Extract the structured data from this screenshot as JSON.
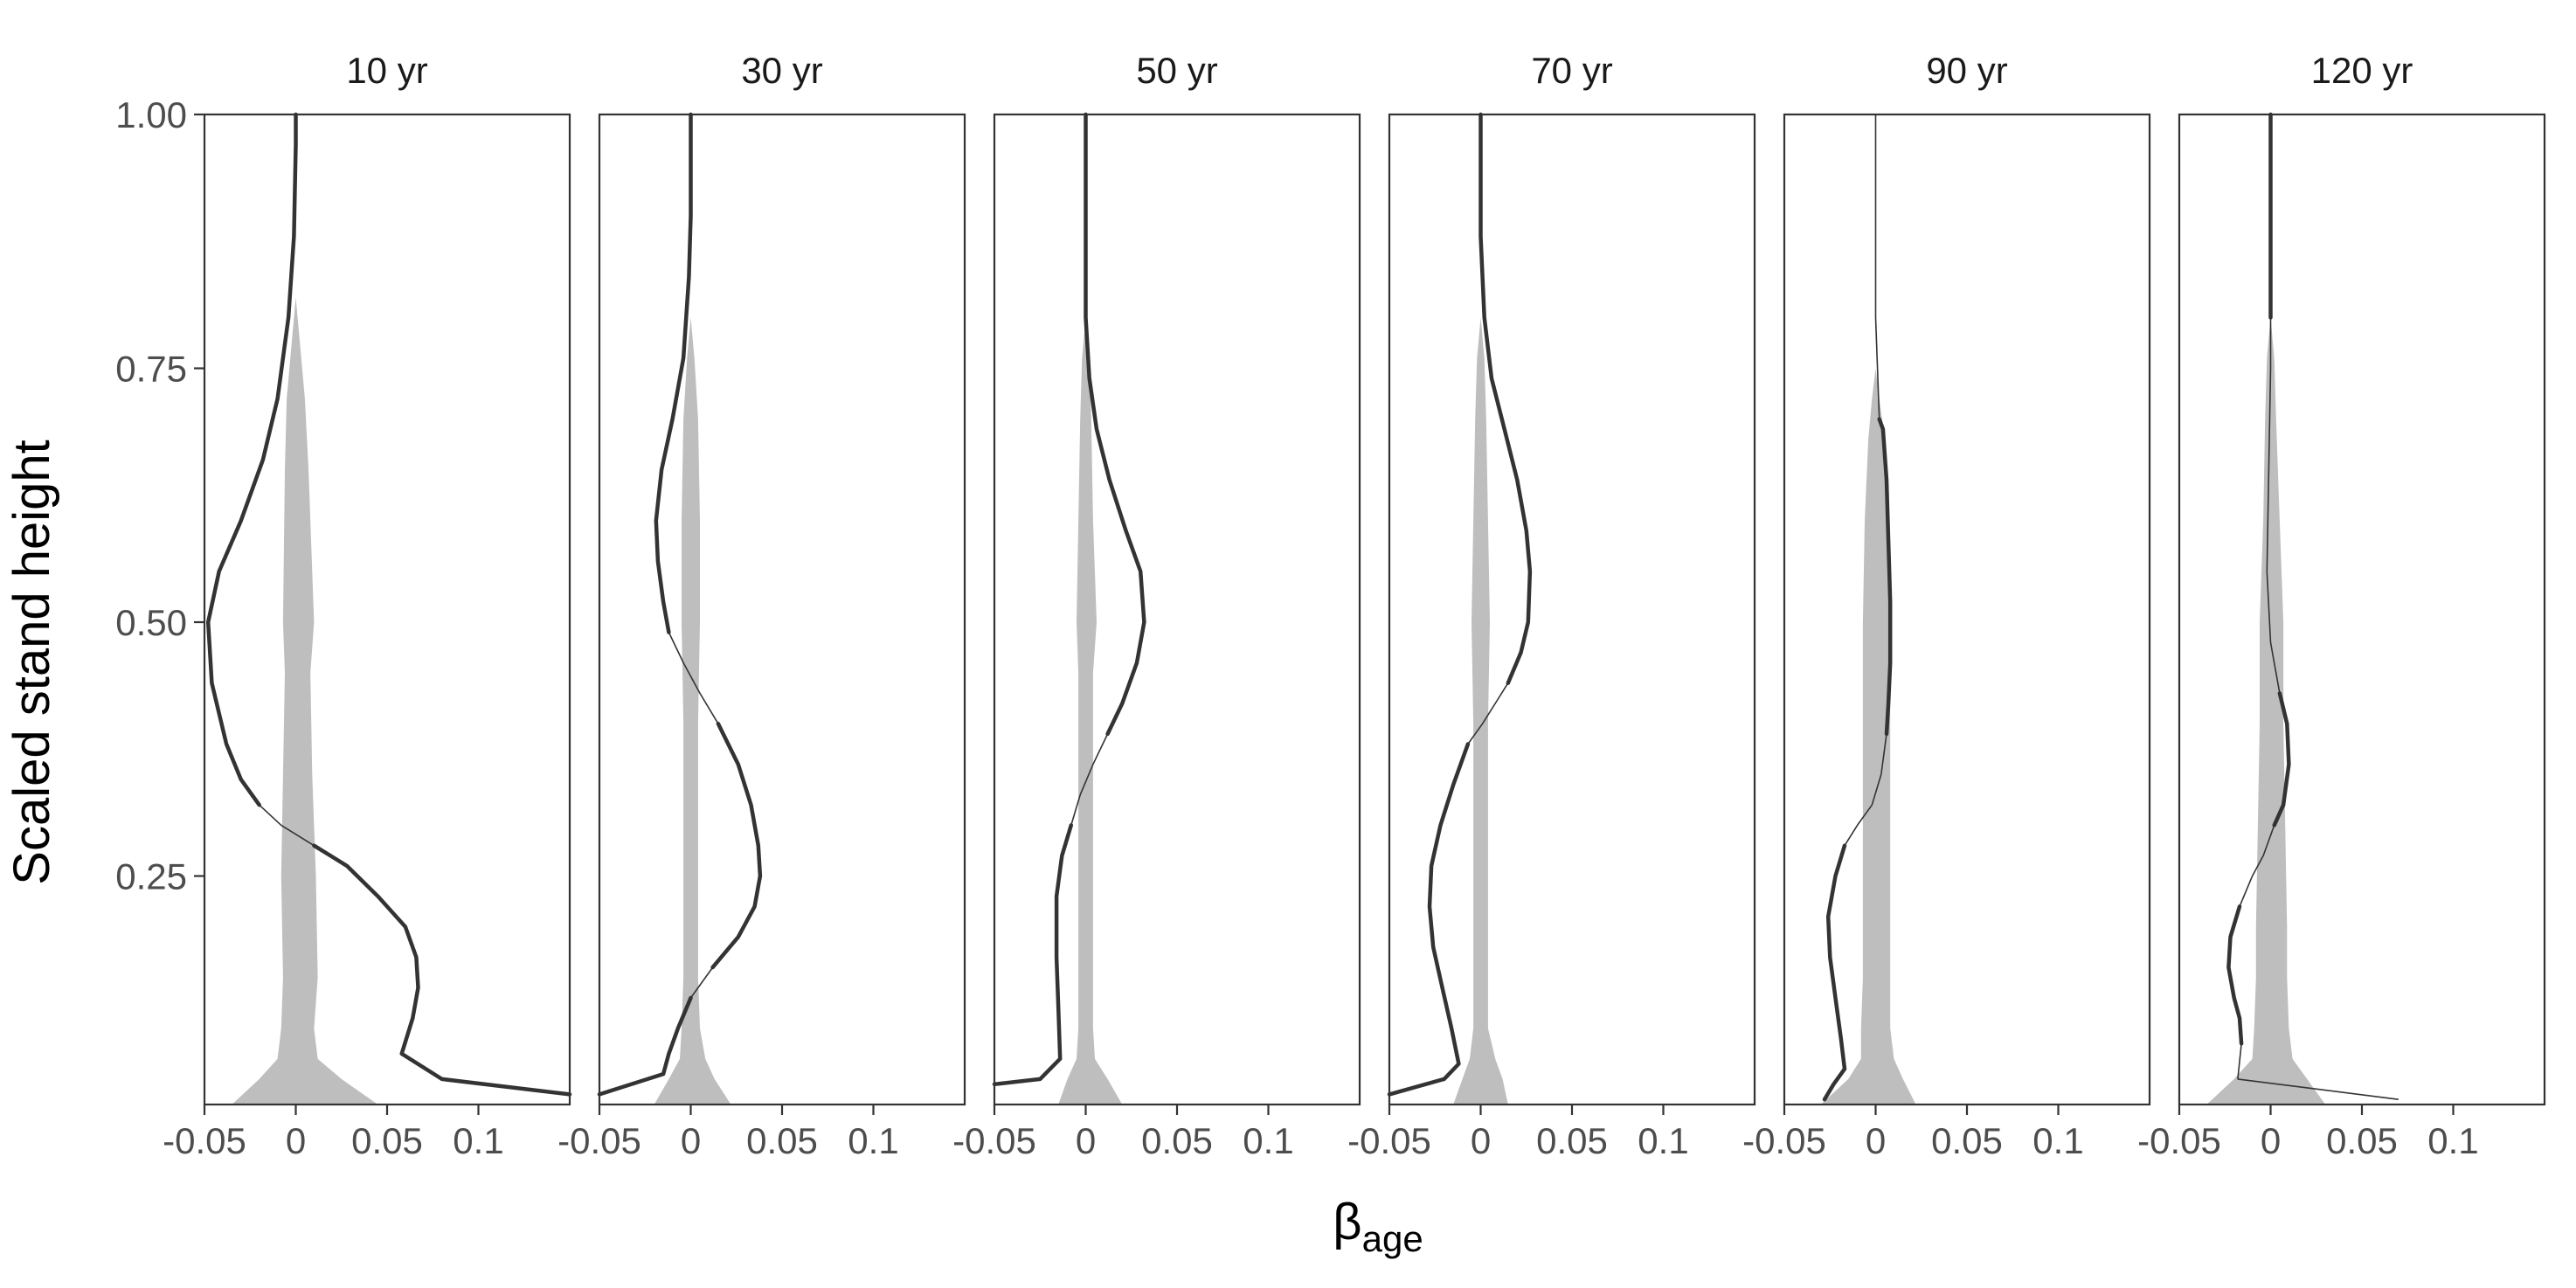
{
  "chart_data": {
    "type": "line",
    "ylabel": "Scaled stand height",
    "xlabel_main": "β",
    "xlabel_sub": "age",
    "xlim": [
      -0.05,
      0.15
    ],
    "ylim": [
      0.025,
      1.0
    ],
    "xticks": [
      -0.05,
      0,
      0.05,
      0.1
    ],
    "xtick_labels": [
      "-0.05",
      "0",
      "0.05",
      "0.1"
    ],
    "yticks": [
      0.25,
      0.5,
      0.75,
      1.0
    ],
    "ytick_labels": [
      "0.25",
      "0.50",
      "0.75",
      "1.00"
    ],
    "colors": {
      "line": "#333333",
      "band": "#bebebe",
      "frame": "#333333"
    },
    "panels": [
      {
        "title": "10 yr",
        "line": [
          [
            0.0,
            1.0
          ],
          [
            0.0,
            0.97
          ],
          [
            -0.001,
            0.88
          ],
          [
            -0.004,
            0.8
          ],
          [
            -0.01,
            0.72
          ],
          [
            -0.018,
            0.66
          ],
          [
            -0.03,
            0.6
          ],
          [
            -0.042,
            0.55
          ],
          [
            -0.048,
            0.5
          ],
          [
            -0.046,
            0.44
          ],
          [
            -0.038,
            0.38
          ],
          [
            -0.03,
            0.345
          ],
          [
            -0.02,
            0.32
          ],
          [
            -0.008,
            0.3
          ],
          [
            0.01,
            0.28
          ],
          [
            0.028,
            0.26
          ],
          [
            0.045,
            0.23
          ],
          [
            0.06,
            0.2
          ],
          [
            0.066,
            0.17
          ],
          [
            0.067,
            0.14
          ],
          [
            0.064,
            0.11
          ],
          [
            0.058,
            0.075
          ],
          [
            0.08,
            0.05
          ],
          [
            0.15,
            0.035
          ]
        ],
        "thin": [
          [
            0.33,
            0.29
          ]
        ],
        "band": [
          [
            1.0,
            0.0,
            0.0
          ],
          [
            0.82,
            0.0,
            0.0
          ],
          [
            0.78,
            -0.002,
            0.002
          ],
          [
            0.72,
            -0.005,
            0.005
          ],
          [
            0.65,
            -0.006,
            0.007
          ],
          [
            0.5,
            -0.007,
            0.01
          ],
          [
            0.45,
            -0.006,
            0.008
          ],
          [
            0.35,
            -0.007,
            0.009
          ],
          [
            0.25,
            -0.008,
            0.011
          ],
          [
            0.15,
            -0.007,
            0.012
          ],
          [
            0.1,
            -0.008,
            0.01
          ],
          [
            0.07,
            -0.01,
            0.012
          ],
          [
            0.05,
            -0.02,
            0.025
          ],
          [
            0.025,
            -0.035,
            0.045
          ]
        ]
      },
      {
        "title": "30 yr",
        "line": [
          [
            0.0,
            1.0
          ],
          [
            0.0,
            0.9
          ],
          [
            -0.001,
            0.84
          ],
          [
            -0.004,
            0.76
          ],
          [
            -0.01,
            0.7
          ],
          [
            -0.016,
            0.65
          ],
          [
            -0.019,
            0.6
          ],
          [
            -0.018,
            0.56
          ],
          [
            -0.015,
            0.52
          ],
          [
            -0.012,
            0.49
          ],
          [
            -0.004,
            0.46
          ],
          [
            0.005,
            0.43
          ],
          [
            0.015,
            0.4
          ],
          [
            0.026,
            0.36
          ],
          [
            0.033,
            0.32
          ],
          [
            0.037,
            0.28
          ],
          [
            0.038,
            0.25
          ],
          [
            0.035,
            0.22
          ],
          [
            0.026,
            0.19
          ],
          [
            0.012,
            0.16
          ],
          [
            0.0,
            0.13
          ],
          [
            -0.007,
            0.1
          ],
          [
            -0.012,
            0.075
          ],
          [
            -0.015,
            0.055
          ],
          [
            -0.05,
            0.035
          ]
        ],
        "thin": [
          [
            0.49,
            0.41
          ],
          [
            0.16,
            0.14
          ]
        ],
        "band": [
          [
            1.0,
            0.0,
            0.0
          ],
          [
            0.8,
            0.0,
            0.0
          ],
          [
            0.76,
            -0.002,
            0.002
          ],
          [
            0.7,
            -0.004,
            0.004
          ],
          [
            0.6,
            -0.005,
            0.005
          ],
          [
            0.5,
            -0.005,
            0.005
          ],
          [
            0.4,
            -0.004,
            0.004
          ],
          [
            0.3,
            -0.004,
            0.004
          ],
          [
            0.2,
            -0.004,
            0.004
          ],
          [
            0.15,
            -0.004,
            0.004
          ],
          [
            0.1,
            -0.005,
            0.005
          ],
          [
            0.07,
            -0.006,
            0.008
          ],
          [
            0.05,
            -0.012,
            0.013
          ],
          [
            0.025,
            -0.02,
            0.022
          ]
        ]
      },
      {
        "title": "50 yr",
        "line": [
          [
            0.0,
            1.0
          ],
          [
            0.0,
            0.9
          ],
          [
            0.0,
            0.8
          ],
          [
            0.002,
            0.74
          ],
          [
            0.006,
            0.69
          ],
          [
            0.013,
            0.64
          ],
          [
            0.022,
            0.59
          ],
          [
            0.03,
            0.55
          ],
          [
            0.032,
            0.5
          ],
          [
            0.028,
            0.46
          ],
          [
            0.02,
            0.42
          ],
          [
            0.012,
            0.39
          ],
          [
            0.004,
            0.36
          ],
          [
            -0.003,
            0.33
          ],
          [
            -0.008,
            0.3
          ],
          [
            -0.013,
            0.27
          ],
          [
            -0.016,
            0.23
          ],
          [
            -0.016,
            0.17
          ],
          [
            -0.015,
            0.12
          ],
          [
            -0.014,
            0.07
          ],
          [
            -0.025,
            0.05
          ],
          [
            -0.05,
            0.045
          ]
        ],
        "thin": [
          [
            0.39,
            0.31
          ]
        ],
        "band": [
          [
            1.0,
            0.0,
            0.0
          ],
          [
            0.8,
            0.0,
            0.0
          ],
          [
            0.76,
            -0.002,
            0.002
          ],
          [
            0.7,
            -0.003,
            0.003
          ],
          [
            0.6,
            -0.004,
            0.004
          ],
          [
            0.5,
            -0.005,
            0.006
          ],
          [
            0.45,
            -0.004,
            0.004
          ],
          [
            0.3,
            -0.004,
            0.004
          ],
          [
            0.2,
            -0.004,
            0.004
          ],
          [
            0.15,
            -0.004,
            0.004
          ],
          [
            0.1,
            -0.004,
            0.004
          ],
          [
            0.07,
            -0.005,
            0.005
          ],
          [
            0.05,
            -0.01,
            0.012
          ],
          [
            0.025,
            -0.015,
            0.02
          ]
        ]
      },
      {
        "title": "70 yr",
        "line": [
          [
            0.0,
            1.0
          ],
          [
            0.0,
            0.97
          ],
          [
            0.0,
            0.88
          ],
          [
            0.002,
            0.8
          ],
          [
            0.006,
            0.74
          ],
          [
            0.013,
            0.69
          ],
          [
            0.02,
            0.64
          ],
          [
            0.025,
            0.59
          ],
          [
            0.027,
            0.55
          ],
          [
            0.026,
            0.5
          ],
          [
            0.022,
            0.47
          ],
          [
            0.015,
            0.44
          ],
          [
            0.008,
            0.42
          ],
          [
            0.001,
            0.4
          ],
          [
            -0.007,
            0.38
          ],
          [
            -0.015,
            0.34
          ],
          [
            -0.022,
            0.3
          ],
          [
            -0.027,
            0.26
          ],
          [
            -0.028,
            0.22
          ],
          [
            -0.026,
            0.18
          ],
          [
            -0.021,
            0.14
          ],
          [
            -0.016,
            0.1
          ],
          [
            -0.012,
            0.065
          ],
          [
            -0.02,
            0.05
          ],
          [
            -0.05,
            0.035
          ]
        ],
        "thin": [
          [
            0.44,
            0.38
          ]
        ],
        "band": [
          [
            1.0,
            0.0,
            0.0
          ],
          [
            0.8,
            0.0,
            0.0
          ],
          [
            0.76,
            -0.002,
            0.002
          ],
          [
            0.7,
            -0.003,
            0.003
          ],
          [
            0.6,
            -0.004,
            0.004
          ],
          [
            0.5,
            -0.005,
            0.005
          ],
          [
            0.4,
            -0.004,
            0.004
          ],
          [
            0.3,
            -0.004,
            0.004
          ],
          [
            0.2,
            -0.004,
            0.004
          ],
          [
            0.15,
            -0.004,
            0.004
          ],
          [
            0.1,
            -0.004,
            0.004
          ],
          [
            0.07,
            -0.006,
            0.008
          ],
          [
            0.05,
            -0.01,
            0.012
          ],
          [
            0.025,
            -0.015,
            0.015
          ]
        ]
      },
      {
        "title": "90 yr",
        "line": [
          [
            0.0,
            1.0
          ],
          [
            0.0,
            0.9
          ],
          [
            0.0,
            0.8
          ],
          [
            0.001,
            0.75
          ],
          [
            0.002,
            0.7
          ],
          [
            0.004,
            0.69
          ],
          [
            0.006,
            0.64
          ],
          [
            0.007,
            0.58
          ],
          [
            0.008,
            0.52
          ],
          [
            0.008,
            0.46
          ],
          [
            0.007,
            0.42
          ],
          [
            0.006,
            0.39
          ],
          [
            0.003,
            0.35
          ],
          [
            -0.002,
            0.32
          ],
          [
            -0.01,
            0.3
          ],
          [
            -0.017,
            0.28
          ],
          [
            -0.022,
            0.25
          ],
          [
            -0.026,
            0.21
          ],
          [
            -0.025,
            0.17
          ],
          [
            -0.022,
            0.13
          ],
          [
            -0.019,
            0.09
          ],
          [
            -0.017,
            0.06
          ],
          [
            -0.023,
            0.045
          ],
          [
            -0.028,
            0.03
          ]
        ],
        "thin": [
          [
            1.0,
            0.7
          ],
          [
            0.39,
            0.28
          ]
        ],
        "band": [
          [
            1.0,
            0.0,
            0.0
          ],
          [
            0.75,
            0.0,
            0.0
          ],
          [
            0.72,
            -0.002,
            0.002
          ],
          [
            0.68,
            -0.004,
            0.005
          ],
          [
            0.6,
            -0.006,
            0.007
          ],
          [
            0.5,
            -0.007,
            0.008
          ],
          [
            0.4,
            -0.007,
            0.008
          ],
          [
            0.3,
            -0.007,
            0.008
          ],
          [
            0.2,
            -0.007,
            0.008
          ],
          [
            0.15,
            -0.007,
            0.008
          ],
          [
            0.1,
            -0.008,
            0.008
          ],
          [
            0.07,
            -0.008,
            0.01
          ],
          [
            0.05,
            -0.015,
            0.015
          ],
          [
            0.025,
            -0.03,
            0.022
          ]
        ]
      },
      {
        "title": "120 yr",
        "line": [
          [
            0.0,
            1.0
          ],
          [
            0.0,
            0.97
          ],
          [
            0.0,
            0.9
          ],
          [
            0.0,
            0.8
          ],
          [
            0.0,
            0.75
          ],
          [
            -0.001,
            0.65
          ],
          [
            -0.002,
            0.55
          ],
          [
            0.0,
            0.48
          ],
          [
            0.005,
            0.43
          ],
          [
            0.009,
            0.4
          ],
          [
            0.01,
            0.36
          ],
          [
            0.007,
            0.32
          ],
          [
            0.002,
            0.3
          ],
          [
            -0.004,
            0.27
          ],
          [
            -0.01,
            0.25
          ],
          [
            -0.017,
            0.22
          ],
          [
            -0.022,
            0.19
          ],
          [
            -0.023,
            0.16
          ],
          [
            -0.02,
            0.13
          ],
          [
            -0.017,
            0.11
          ],
          [
            -0.016,
            0.085
          ],
          [
            -0.018,
            0.05
          ],
          [
            0.07,
            0.03
          ]
        ],
        "thin": [
          [
            0.8,
            0.43
          ],
          [
            0.3,
            0.22
          ],
          [
            0.085,
            0.03
          ]
        ],
        "band": [
          [
            1.0,
            0.0,
            0.0
          ],
          [
            0.8,
            0.0,
            0.0
          ],
          [
            0.76,
            -0.002,
            0.002
          ],
          [
            0.7,
            -0.003,
            0.003
          ],
          [
            0.6,
            -0.004,
            0.005
          ],
          [
            0.5,
            -0.006,
            0.007
          ],
          [
            0.4,
            -0.006,
            0.007
          ],
          [
            0.3,
            -0.007,
            0.008
          ],
          [
            0.2,
            -0.008,
            0.009
          ],
          [
            0.15,
            -0.008,
            0.009
          ],
          [
            0.1,
            -0.009,
            0.01
          ],
          [
            0.07,
            -0.01,
            0.012
          ],
          [
            0.05,
            -0.02,
            0.02
          ],
          [
            0.025,
            -0.035,
            0.03
          ]
        ]
      }
    ]
  }
}
